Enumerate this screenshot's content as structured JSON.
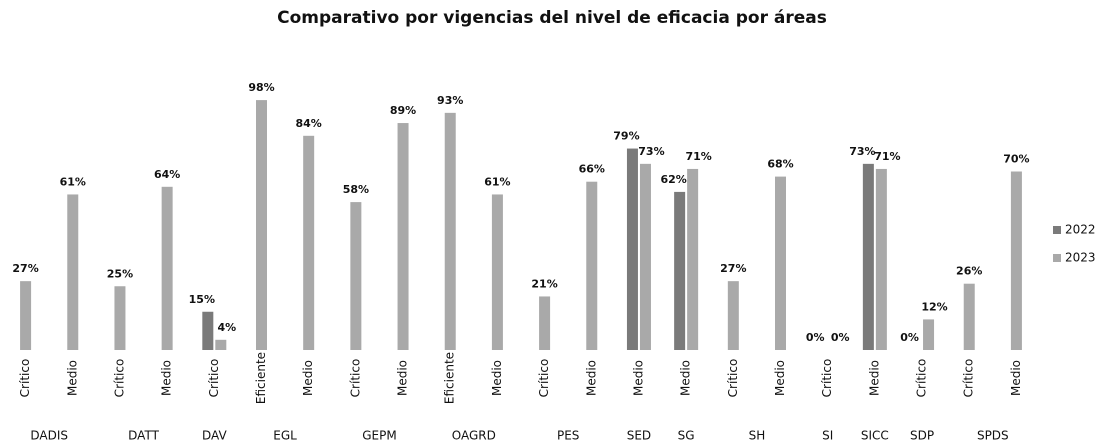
{
  "chart_data": {
    "type": "bar",
    "title": "Comparativo por vigencias del nivel de eficacia por áreas",
    "groups": [
      {
        "name": "DADIS",
        "categories": [
          "Crítico",
          "Medio"
        ]
      },
      {
        "name": "DATT",
        "categories": [
          "Crítico",
          "Medio"
        ]
      },
      {
        "name": "DAV",
        "categories": [
          "Crítico"
        ]
      },
      {
        "name": "EGL",
        "categories": [
          "Eficiente",
          "Medio"
        ]
      },
      {
        "name": "GEPM",
        "categories": [
          "Crítico",
          "Medio"
        ]
      },
      {
        "name": "OAGRD",
        "categories": [
          "Eficiente",
          "Medio"
        ]
      },
      {
        "name": "PES",
        "categories": [
          "Crítico",
          "Medio"
        ]
      },
      {
        "name": "SED",
        "categories": [
          "Medio"
        ]
      },
      {
        "name": "SG",
        "categories": [
          "Medio"
        ]
      },
      {
        "name": "SH",
        "categories": [
          "Crítico",
          "Medio"
        ]
      },
      {
        "name": "SI",
        "categories": [
          "Crítico"
        ]
      },
      {
        "name": "SICC",
        "categories": [
          "Medio"
        ]
      },
      {
        "name": "SDP",
        "categories": [
          "Crítico"
        ]
      },
      {
        "name": "SPDS",
        "categories": [
          "Crítico",
          "Medio"
        ]
      }
    ],
    "series": [
      {
        "name": "2022",
        "color": "#7a7a7a",
        "values": [
          null,
          null,
          null,
          null,
          15,
          null,
          null,
          null,
          null,
          null,
          null,
          null,
          null,
          79,
          62,
          null,
          null,
          0,
          73,
          0,
          null,
          null
        ],
        "value_labels": [
          null,
          null,
          null,
          null,
          "15%",
          null,
          null,
          null,
          null,
          null,
          null,
          null,
          null,
          "79%",
          "62%",
          null,
          null,
          "0%",
          "73%",
          "0%",
          null,
          null
        ]
      },
      {
        "name": "2023",
        "color": "#a9a9a9",
        "values": [
          27,
          61,
          25,
          64,
          4,
          98,
          84,
          58,
          89,
          93,
          61,
          21,
          66,
          73,
          71,
          27,
          68,
          0,
          71,
          12,
          26,
          70
        ],
        "value_labels": [
          "27%",
          "61%",
          "25%",
          "64%",
          "4%",
          "98%",
          "84%",
          "58%",
          "89%",
          "93%",
          "61%",
          "21%",
          "66%",
          "73%",
          "71%",
          "27%",
          "68%",
          "0%",
          "71%",
          "12%",
          "26%",
          "70%"
        ]
      }
    ],
    "ylim": [
      0,
      100
    ],
    "legend": "right"
  }
}
